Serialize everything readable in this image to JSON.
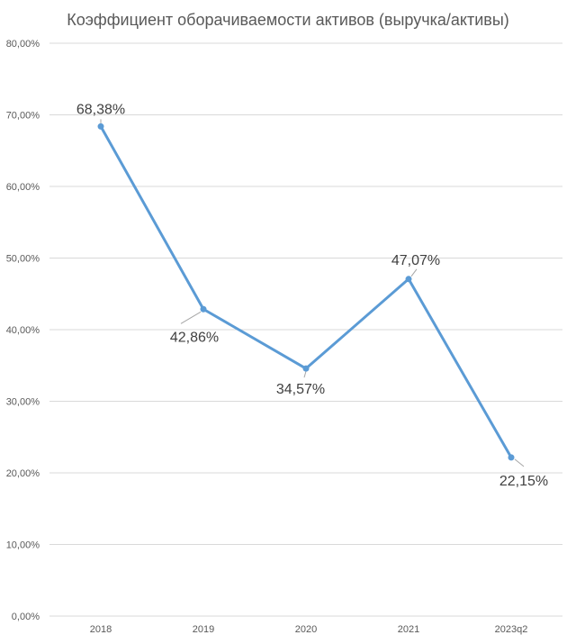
{
  "chart_data": {
    "type": "line",
    "title": "Коэффициент оборачиваемости активов (выручка/активы)",
    "xlabel": "",
    "ylabel": "",
    "categories": [
      "2018",
      "2019",
      "2020",
      "2021",
      "2023q2"
    ],
    "series": [
      {
        "values": [
          68.38,
          42.86,
          34.57,
          47.07,
          22.15
        ],
        "data_labels": [
          "68,38%",
          "42,86%",
          "34,57%",
          "47,07%",
          "22,15%"
        ],
        "color": "#5b9bd5"
      }
    ],
    "ylim": [
      0,
      80
    ],
    "yticks": [
      0,
      10,
      20,
      30,
      40,
      50,
      60,
      70,
      80
    ],
    "ytick_labels": [
      "0,00%",
      "10,00%",
      "20,00%",
      "30,00%",
      "40,00%",
      "50,00%",
      "60,00%",
      "70,00%",
      "80,00%"
    ],
    "grid": true,
    "legend": "none"
  }
}
